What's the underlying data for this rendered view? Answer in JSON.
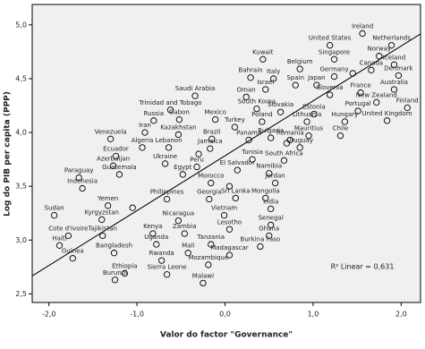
{
  "chart_data": {
    "type": "scatter",
    "x_label": "Valor do factor \"Governance\"",
    "y_label": "Log do PIB per capita (PPP)",
    "annotation": "R² Linear = 0,631",
    "xlim": [
      -2.19,
      2.22
    ],
    "ylim": [
      2.42,
      5.19
    ],
    "xticks": [
      {
        "value": -2,
        "label": "-2,0"
      },
      {
        "value": -1,
        "label": "-1,0"
      },
      {
        "value": 0,
        "label": "0,0"
      },
      {
        "value": 1,
        "label": "1,0"
      },
      {
        "value": 2,
        "label": "2,0"
      }
    ],
    "yticks": [
      {
        "value": 2.5,
        "label": "2,5"
      },
      {
        "value": 3,
        "label": "3,0"
      },
      {
        "value": 3.5,
        "label": "3,5"
      },
      {
        "value": 4,
        "label": "4,0"
      },
      {
        "value": 4.5,
        "label": "4,5"
      },
      {
        "value": 5,
        "label": "5,0"
      }
    ],
    "fit": {
      "intercept": 3.784,
      "slope": 0.51
    },
    "labels": [
      "Ireland",
      "United States",
      "Netherlands",
      "Norway",
      "Kuwait",
      "Singapore",
      "Belgium",
      "Iceland",
      "Germany",
      "Canada",
      "Denmark",
      "Bahrain",
      "Italy",
      "Spain",
      "Japan",
      "Australia",
      "Israel",
      "France",
      "Saudi Arabia",
      "Oman",
      "Slovenia",
      "New Zealand",
      "Finland",
      "Trinidad and Tobago",
      "South Korea",
      "Slovakia",
      "Portugal",
      "Russia",
      "Gabon",
      "Mexico",
      "Estonia",
      "Poland",
      "Lithuania",
      "Hungary",
      "United Kingdom",
      "Turkey",
      "Iran",
      "Kazakhstan",
      "Brazil",
      "Venezuela",
      "Panama",
      "Bulgaria",
      "Romania",
      "Mauritius",
      "Chile",
      "Uruguay",
      "Algeria",
      "Lebanon",
      "Jamaica",
      "Ecuador",
      "Tunisia",
      "South Africa",
      "Azerbaijan",
      "Ukraine",
      "Peru",
      "Guatemala",
      "Egypt",
      "El Salvador",
      "Namibia",
      "Paraguay",
      "Morocco",
      "Jordan",
      "Indonesia",
      "Philippines",
      "Georgia",
      "Sri Lanka",
      "Mongolia",
      "India",
      "Yemen",
      "Sudan",
      "Kyrgyzstan",
      "Vietnam",
      "Nicaragua",
      "Senegal",
      "Lesotho",
      "Cote d'Ivoire",
      "Tajikistan",
      "Kenya",
      "Zambia",
      "Ghana",
      "Haiti",
      "Uganda",
      "Tanzania",
      "Burkina Faso",
      "Bangladesh",
      "Mali",
      "Madagascar",
      "Guinea",
      "Rwanda",
      "Mozambique",
      "Ethiopia",
      "Sierra Leone",
      "Malawi",
      "Burundi",
      null,
      null,
      null,
      null,
      null
    ],
    "x": [
      1.56,
      1.19,
      1.89,
      1.75,
      0.43,
      1.24,
      0.85,
      1.92,
      1.24,
      1.66,
      1.97,
      0.29,
      0.55,
      0.8,
      1.04,
      1.92,
      0.46,
      1.54,
      -0.34,
      0.24,
      1.19,
      1.72,
      2.07,
      -0.62,
      0.36,
      0.63,
      1.51,
      -0.81,
      -0.52,
      -0.11,
      1.01,
      0.42,
      0.93,
      1.36,
      1.84,
      0.11,
      -0.91,
      -0.53,
      -0.15,
      -1.3,
      0.27,
      0.52,
      0.74,
      0.95,
      1.31,
      0.85,
      -0.94,
      -0.64,
      -0.17,
      -1.24,
      0.31,
      0.67,
      -1.27,
      -0.68,
      -0.32,
      -1.2,
      -0.48,
      0.14,
      0.5,
      -1.66,
      -0.16,
      0.57,
      -1.62,
      -0.66,
      -0.18,
      0.12,
      0.46,
      0.52,
      -1.33,
      -1.94,
      -1.4,
      -0.01,
      -0.53,
      0.52,
      0.05,
      -1.78,
      -1.39,
      -0.82,
      -0.46,
      0.5,
      -1.88,
      -0.78,
      -0.16,
      0.4,
      -1.26,
      -0.42,
      0.05,
      -1.73,
      -0.72,
      -0.19,
      -1.14,
      -0.66,
      -0.25,
      -1.25,
      1.45,
      0.05,
      -0.3,
      0.7,
      -1.05
    ],
    "y": [
      4.92,
      4.81,
      4.81,
      4.71,
      4.68,
      4.68,
      4.59,
      4.63,
      4.52,
      4.58,
      4.53,
      4.51,
      4.5,
      4.44,
      4.44,
      4.4,
      4.4,
      4.37,
      4.34,
      4.33,
      4.35,
      4.28,
      4.23,
      4.21,
      4.22,
      4.19,
      4.2,
      4.11,
      4.12,
      4.12,
      4.17,
      4.1,
      4.1,
      4.1,
      4.11,
      4.05,
      4.0,
      3.98,
      3.94,
      3.94,
      3.93,
      3.95,
      3.93,
      3.97,
      3.97,
      3.86,
      3.86,
      3.86,
      3.85,
      3.78,
      3.75,
      3.74,
      3.69,
      3.71,
      3.68,
      3.61,
      3.61,
      3.65,
      3.62,
      3.58,
      3.53,
      3.53,
      3.48,
      3.38,
      3.38,
      3.39,
      3.39,
      3.29,
      3.32,
      3.23,
      3.19,
      3.23,
      3.18,
      3.14,
      3.1,
      3.04,
      3.04,
      3.06,
      3.06,
      3.04,
      2.95,
      2.96,
      2.96,
      2.94,
      2.88,
      2.88,
      2.86,
      2.83,
      2.81,
      2.77,
      2.69,
      2.68,
      2.6,
      2.63,
      4.55,
      3.5,
      3.8,
      3.9,
      3.3
    ]
  }
}
